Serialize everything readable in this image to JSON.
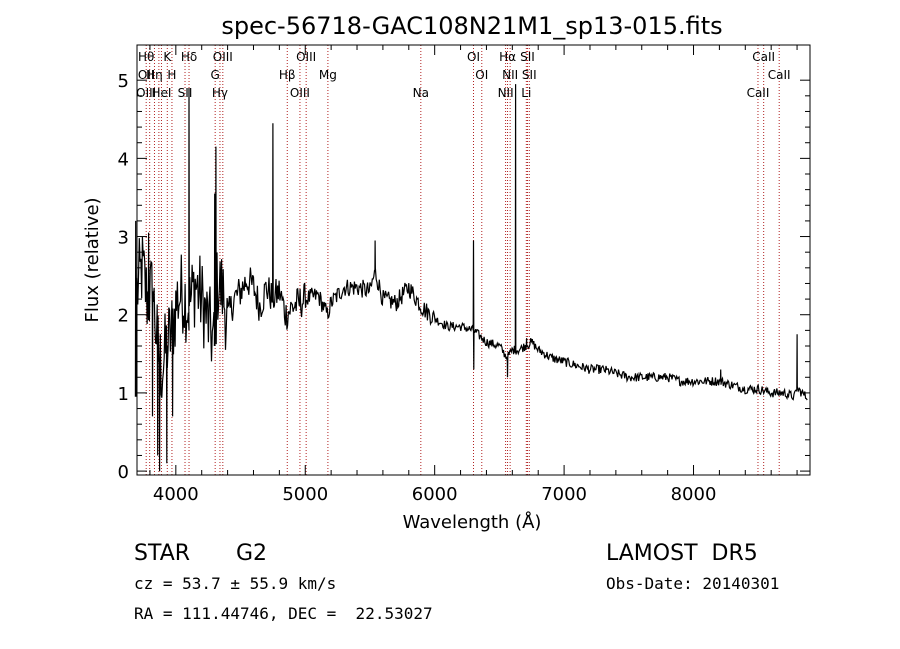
{
  "chart_data": {
    "type": "line",
    "title": "spec-56718-GAC108N21M1_sp13-015.fits",
    "xlabel": "Wavelength (Å)",
    "ylabel": "Flux (relative)",
    "xlim": [
      3700,
      8900
    ],
    "ylim": [
      -0.05,
      5.45
    ],
    "xticks": [
      4000,
      5000,
      6000,
      7000,
      8000
    ],
    "yticks": [
      0,
      1,
      2,
      3,
      4,
      5
    ],
    "grid": false,
    "line_color": "#000000",
    "marker_color": "#b22222",
    "spectrum_anchors": [
      [
        3700,
        2.3
      ],
      [
        3740,
        2.6
      ],
      [
        3780,
        2.2
      ],
      [
        3820,
        2.3
      ],
      [
        3860,
        1.6
      ],
      [
        3890,
        1.3
      ],
      [
        3930,
        1.6
      ],
      [
        3970,
        1.8
      ],
      [
        4010,
        2.2
      ],
      [
        4050,
        2.3
      ],
      [
        4100,
        2.1
      ],
      [
        4150,
        2.4
      ],
      [
        4200,
        2.2
      ],
      [
        4250,
        1.9
      ],
      [
        4300,
        1.6
      ],
      [
        4320,
        2.4
      ],
      [
        4360,
        2.3
      ],
      [
        4400,
        1.95
      ],
      [
        4450,
        2.2
      ],
      [
        4500,
        2.3
      ],
      [
        4550,
        2.45
      ],
      [
        4600,
        2.35
      ],
      [
        4650,
        2.1
      ],
      [
        4700,
        2.35
      ],
      [
        4750,
        2.2
      ],
      [
        4800,
        2.3
      ],
      [
        4850,
        2.0
      ],
      [
        4900,
        2.1
      ],
      [
        4950,
        2.15
      ],
      [
        5000,
        2.2
      ],
      [
        5100,
        2.25
      ],
      [
        5170,
        2.0
      ],
      [
        5200,
        2.15
      ],
      [
        5300,
        2.35
      ],
      [
        5400,
        2.35
      ],
      [
        5500,
        2.3
      ],
      [
        5540,
        2.55
      ],
      [
        5600,
        2.2
      ],
      [
        5700,
        2.15
      ],
      [
        5800,
        2.35
      ],
      [
        5900,
        2.1
      ],
      [
        6000,
        1.95
      ],
      [
        6100,
        1.85
      ],
      [
        6200,
        1.85
      ],
      [
        6300,
        1.8
      ],
      [
        6400,
        1.65
      ],
      [
        6500,
        1.6
      ],
      [
        6560,
        1.45
      ],
      [
        6600,
        1.55
      ],
      [
        6650,
        1.55
      ],
      [
        6700,
        1.6
      ],
      [
        6750,
        1.65
      ],
      [
        6800,
        1.55
      ],
      [
        6900,
        1.45
      ],
      [
        7000,
        1.4
      ],
      [
        7100,
        1.35
      ],
      [
        7200,
        1.3
      ],
      [
        7300,
        1.3
      ],
      [
        7400,
        1.25
      ],
      [
        7500,
        1.2
      ],
      [
        7600,
        1.2
      ],
      [
        7700,
        1.2
      ],
      [
        7800,
        1.2
      ],
      [
        7900,
        1.15
      ],
      [
        8000,
        1.15
      ],
      [
        8100,
        1.15
      ],
      [
        8200,
        1.15
      ],
      [
        8300,
        1.1
      ],
      [
        8400,
        1.05
      ],
      [
        8500,
        1.05
      ],
      [
        8600,
        1.0
      ],
      [
        8700,
        1.0
      ],
      [
        8780,
        0.95
      ],
      [
        8800,
        1.05
      ],
      [
        8840,
        1.0
      ],
      [
        8870,
        0.95
      ]
    ],
    "spectrum_features": [
      [
        4102,
        4.9
      ],
      [
        4300,
        3.55
      ],
      [
        4310,
        4.15
      ],
      [
        4750,
        4.45
      ],
      [
        5540,
        2.95
      ],
      [
        6300,
        2.95
      ],
      [
        6302,
        1.3
      ],
      [
        6563,
        1.2
      ],
      [
        6625,
        4.95
      ],
      [
        6710,
        1.7
      ],
      [
        8210,
        1.3
      ],
      [
        8800,
        1.75
      ],
      [
        3875,
        0.0
      ],
      [
        3860,
        0.2
      ],
      [
        3930,
        0.1
      ],
      [
        3975,
        0.7
      ],
      [
        3790,
        3.05
      ],
      [
        3820,
        0.7
      ],
      [
        3690,
        3.2
      ]
    ],
    "line_markers": [
      {
        "wavelength": 3771,
        "labels": [
          "Hθ",
          "OII",
          "OIII"
        ]
      },
      {
        "wavelength": 3798,
        "labels": []
      },
      {
        "wavelength": 3835,
        "labels": [
          "Hη"
        ]
      },
      {
        "wavelength": 3869,
        "labels": []
      },
      {
        "wavelength": 3889,
        "labels": [
          "HeI"
        ]
      },
      {
        "wavelength": 3934,
        "labels": [
          "K"
        ]
      },
      {
        "wavelength": 3970,
        "labels": [
          "H"
        ]
      },
      {
        "wavelength": 4071,
        "labels": [
          "SII"
        ]
      },
      {
        "wavelength": 4102,
        "labels": [
          "Hδ"
        ]
      },
      {
        "wavelength": 4304,
        "labels": [
          "G"
        ]
      },
      {
        "wavelength": 4341,
        "labels": [
          "Hγ"
        ]
      },
      {
        "wavelength": 4363,
        "labels": [
          "OIII"
        ]
      },
      {
        "wavelength": 4861,
        "labels": [
          "Hβ"
        ]
      },
      {
        "wavelength": 4959,
        "labels": [
          "OIII"
        ]
      },
      {
        "wavelength": 5007,
        "labels": [
          "OIII"
        ]
      },
      {
        "wavelength": 5175,
        "labels": [
          "Mg"
        ]
      },
      {
        "wavelength": 5893,
        "labels": [
          "Na"
        ]
      },
      {
        "wavelength": 6300,
        "labels": [
          "OI"
        ]
      },
      {
        "wavelength": 6364,
        "labels": [
          "OI"
        ]
      },
      {
        "wavelength": 6548,
        "labels": [
          "NII"
        ]
      },
      {
        "wavelength": 6563,
        "labels": [
          "Hα"
        ]
      },
      {
        "wavelength": 6583,
        "labels": [
          "NII"
        ]
      },
      {
        "wavelength": 6708,
        "labels": [
          "Li"
        ]
      },
      {
        "wavelength": 6717,
        "labels": [
          "SII"
        ]
      },
      {
        "wavelength": 6731,
        "labels": [
          "SII"
        ]
      },
      {
        "wavelength": 8498,
        "labels": [
          "CaII"
        ]
      },
      {
        "wavelength": 8542,
        "labels": [
          "CaII"
        ]
      },
      {
        "wavelength": 8662,
        "labels": [
          "CaII"
        ]
      }
    ]
  },
  "info": {
    "object_class": "STAR",
    "subclass": "G2",
    "survey": "LAMOST  DR5",
    "redshift": "cz = 53.7 ± 55.9 km/s",
    "obs_date": "Obs-Date: 20140301",
    "coords": "RA = 111.44746, DEC =  22.53027"
  }
}
